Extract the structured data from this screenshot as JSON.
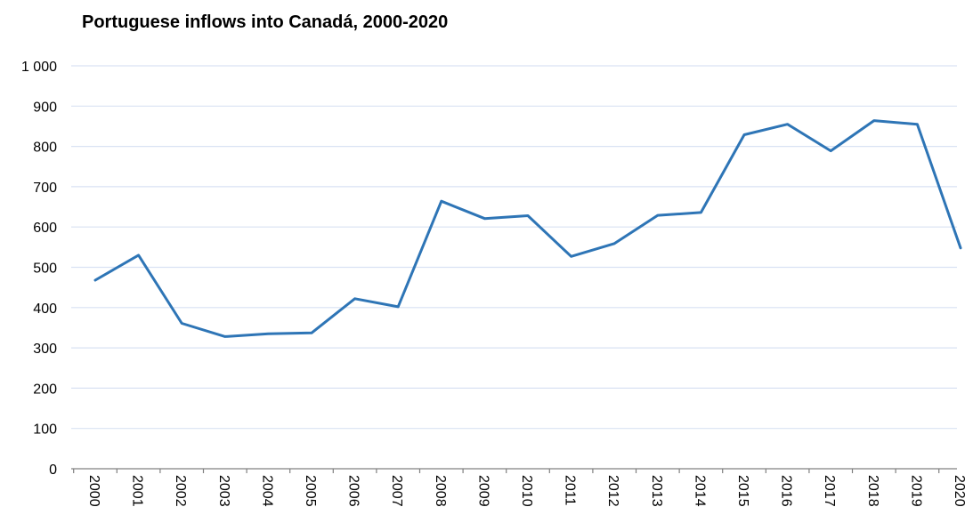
{
  "chart_data": {
    "type": "line",
    "title": "Portuguese inflows into Canadá, 2000-2020",
    "xlabel": "",
    "ylabel": "",
    "x": [
      "2000",
      "2001",
      "2002",
      "2003",
      "2004",
      "2005",
      "2006",
      "2007",
      "2008",
      "2009",
      "2010",
      "2011",
      "2012",
      "2013",
      "2014",
      "2015",
      "2016",
      "2017",
      "2018",
      "2019",
      "2020"
    ],
    "series": [
      {
        "values": [
          468,
          530,
          361,
          328,
          335,
          337,
          422,
          402,
          664,
          621,
          628,
          527,
          559,
          629,
          636,
          829,
          855,
          789,
          864,
          855,
          548
        ],
        "color": "#2e75b6"
      }
    ],
    "ylim": [
      0,
      1000
    ],
    "yticks": [
      0,
      100,
      200,
      300,
      400,
      500,
      600,
      700,
      800,
      900,
      1000
    ],
    "ytick_labels": [
      "0",
      "100",
      "200",
      "300",
      "400",
      "500",
      "600",
      "700",
      "800",
      "900",
      "1 000"
    ],
    "grid": true,
    "grid_color": "#d9e2f3",
    "axis_color": "#808080",
    "legend": "none"
  }
}
